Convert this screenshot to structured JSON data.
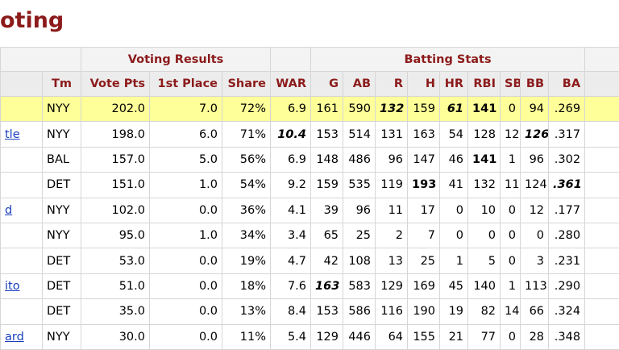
{
  "header": {
    "title": "oting"
  },
  "table": {
    "groups": [
      "Voting Results",
      "Batting Stats"
    ],
    "headers": [
      null,
      "Tm",
      "Vote Pts",
      "1st Place",
      "Share",
      "WAR",
      "G",
      "AB",
      "R",
      "H",
      "HR",
      "RBI",
      "SB",
      "BB",
      "BA"
    ],
    "highlight_row": 0,
    "rows": [
      [
        null,
        "NYY",
        "202.0",
        "7.0",
        "72%",
        "6.9",
        "161",
        "590",
        "132",
        "159",
        "61",
        "141",
        "0",
        "94",
        ".269"
      ],
      [
        "tle",
        "NYY",
        "198.0",
        "6.0",
        "71%",
        "10.4",
        "153",
        "514",
        "131",
        "163",
        "54",
        "128",
        "12",
        "126",
        ".317"
      ],
      [
        null,
        "BAL",
        "157.0",
        "5.0",
        "56%",
        "6.9",
        "148",
        "486",
        "96",
        "147",
        "46",
        "141",
        "1",
        "96",
        ".302"
      ],
      [
        null,
        "DET",
        "151.0",
        "1.0",
        "54%",
        "9.2",
        "159",
        "535",
        "119",
        "193",
        "41",
        "132",
        "11",
        "124",
        ".361"
      ],
      [
        "d",
        "NYY",
        "102.0",
        "0.0",
        "36%",
        "4.1",
        "39",
        "96",
        "11",
        "17",
        "0",
        "10",
        "0",
        "12",
        ".177"
      ],
      [
        null,
        "NYY",
        "95.0",
        "1.0",
        "34%",
        "3.4",
        "65",
        "25",
        "2",
        "7",
        "0",
        "0",
        "0",
        "0",
        ".280"
      ],
      [
        null,
        "DET",
        "53.0",
        "0.0",
        "19%",
        "4.7",
        "42",
        "108",
        "13",
        "25",
        "1",
        "5",
        "0",
        "3",
        ".231"
      ],
      [
        "ito",
        "DET",
        "51.0",
        "0.0",
        "18%",
        "7.6",
        "163",
        "583",
        "129",
        "169",
        "45",
        "140",
        "1",
        "113",
        ".290"
      ],
      [
        null,
        "DET",
        "35.0",
        "0.0",
        "13%",
        "8.4",
        "153",
        "586",
        "116",
        "190",
        "19",
        "82",
        "14",
        "66",
        ".324"
      ],
      [
        "ard",
        "NYY",
        "30.0",
        "0.0",
        "11%",
        "5.4",
        "129",
        "446",
        "64",
        "155",
        "21",
        "77",
        "0",
        "28",
        ".348"
      ]
    ],
    "emphasis": [
      [
        0,
        8,
        "bold-italic"
      ],
      [
        0,
        10,
        "bold-italic"
      ],
      [
        0,
        11,
        "bold"
      ],
      [
        1,
        5,
        "bold-italic"
      ],
      [
        1,
        13,
        "bold-italic"
      ],
      [
        2,
        11,
        "bold"
      ],
      [
        3,
        9,
        "bold"
      ],
      [
        3,
        14,
        "bold-italic"
      ],
      [
        7,
        6,
        "bold-italic"
      ]
    ]
  }
}
